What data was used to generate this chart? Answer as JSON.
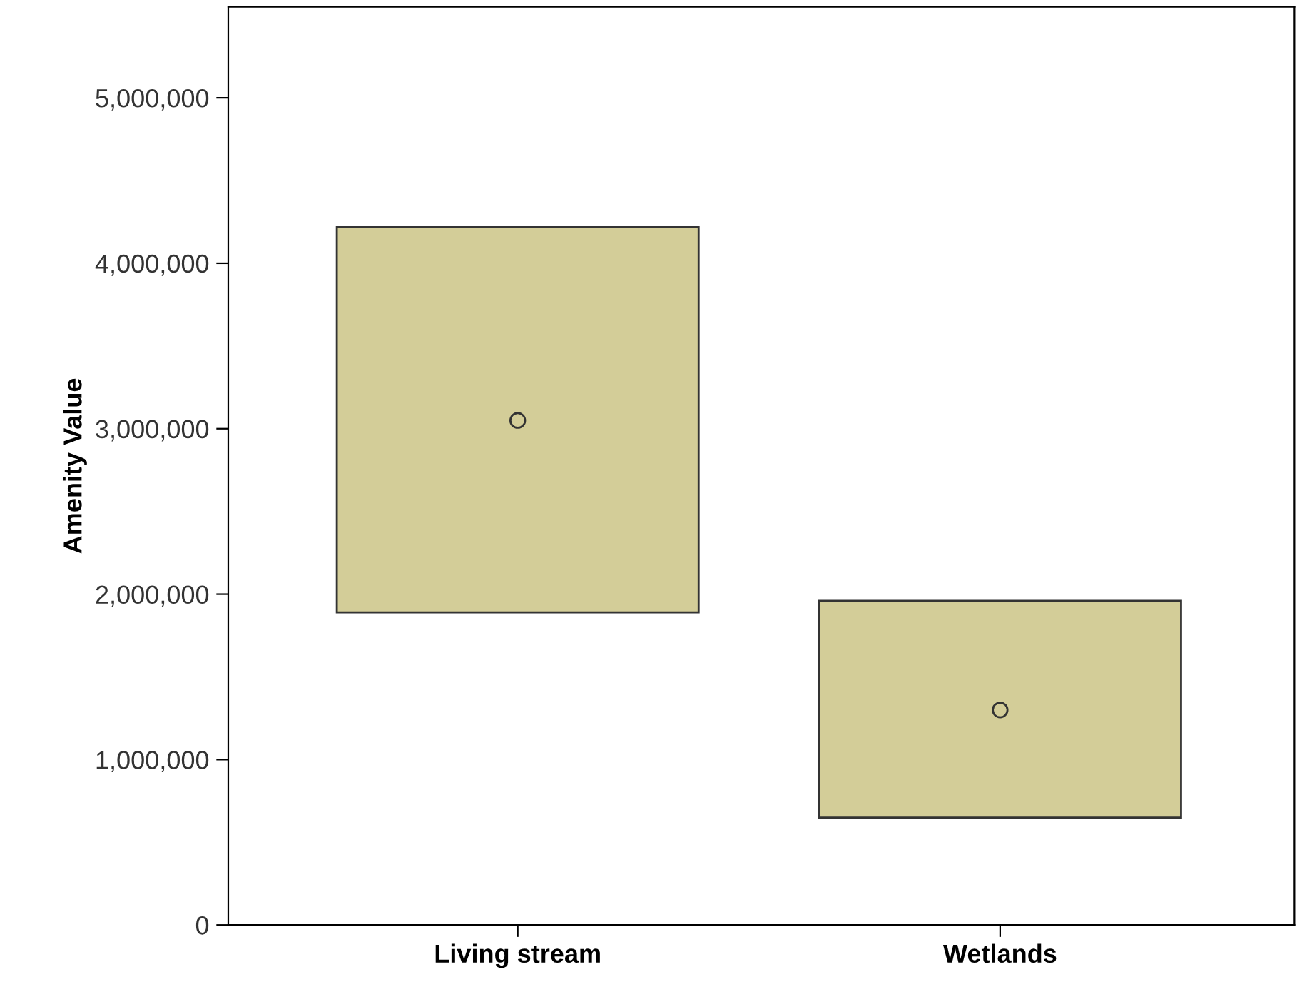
{
  "chart_data": {
    "type": "bar",
    "ylabel": "Amenity Value",
    "categories": [
      "Living stream",
      "Wetlands"
    ],
    "ylim": [
      0,
      5550000
    ],
    "yticks": [
      0,
      {
        "value": 1000000,
        "label": "1,000,000"
      },
      {
        "value": 2000000,
        "label": "2,000,000"
      },
      {
        "value": 3000000,
        "label": "3,000,000"
      },
      {
        "value": 4000000,
        "label": "4,000,000"
      },
      {
        "value": 5000000,
        "label": "5,000,000"
      }
    ],
    "grid": false,
    "legend": false,
    "series": [
      {
        "color": "#d3cd98",
        "values": [
          2330000,
          1310000
        ],
        "base": [
          1890000,
          650000
        ]
      },
      {
        "type": "scatter",
        "color": "#d3cd98",
        "marker": "circle",
        "x": [
          "Living stream",
          "Wetlands"
        ],
        "values": [
          3050000,
          1300000
        ]
      }
    ]
  }
}
